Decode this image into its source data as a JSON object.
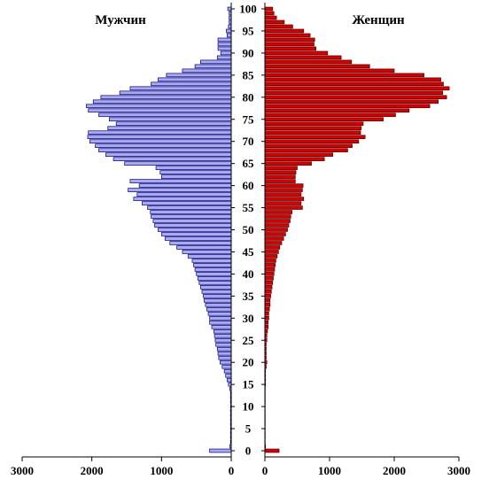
{
  "chart_data": [
    {
      "type": "bar",
      "orientation": "horizontal",
      "title": "Мужчин",
      "xlim": [
        3000,
        0
      ],
      "x_ticks": [
        "3000",
        "2000",
        "1000",
        "0"
      ],
      "color": "#aaaaf0",
      "edge_color": "#00007a",
      "ages": [
        0,
        1,
        2,
        3,
        4,
        5,
        6,
        7,
        8,
        9,
        10,
        11,
        12,
        13,
        14,
        15,
        16,
        17,
        18,
        19,
        20,
        21,
        22,
        23,
        24,
        25,
        26,
        27,
        28,
        29,
        30,
        31,
        32,
        33,
        34,
        35,
        36,
        37,
        38,
        39,
        40,
        41,
        42,
        43,
        44,
        45,
        46,
        47,
        48,
        49,
        50,
        51,
        52,
        53,
        54,
        55,
        56,
        57,
        58,
        59,
        60,
        61,
        62,
        63,
        64,
        65,
        66,
        67,
        68,
        69,
        70,
        71,
        72,
        73,
        74,
        75,
        76,
        77,
        78,
        79,
        80,
        81,
        82,
        83,
        84,
        85,
        86,
        87,
        88,
        89,
        90,
        91,
        92,
        93,
        94,
        95,
        96,
        97,
        98,
        99,
        100
      ],
      "values": [
        310,
        20,
        10,
        10,
        10,
        10,
        10,
        10,
        10,
        10,
        10,
        10,
        10,
        10,
        20,
        40,
        60,
        80,
        100,
        130,
        160,
        180,
        190,
        200,
        220,
        230,
        240,
        250,
        280,
        310,
        310,
        330,
        350,
        370,
        390,
        400,
        420,
        440,
        460,
        480,
        500,
        520,
        540,
        560,
        620,
        700,
        780,
        880,
        950,
        1000,
        1050,
        1100,
        1120,
        1150,
        1160,
        1200,
        1280,
        1400,
        1350,
        1480,
        1320,
        1450,
        1000,
        1020,
        1080,
        1530,
        1690,
        1800,
        1900,
        1950,
        2030,
        2060,
        2050,
        1770,
        1650,
        1750,
        1900,
        2050,
        2080,
        1980,
        1870,
        1600,
        1450,
        1150,
        1050,
        930,
        700,
        520,
        440,
        200,
        150,
        190,
        190,
        190,
        60,
        70,
        40,
        30,
        30,
        30,
        50
      ]
    },
    {
      "type": "bar",
      "orientation": "horizontal",
      "title": "Женщин",
      "xlim": [
        0,
        3000
      ],
      "x_ticks": [
        "0",
        "1000",
        "2000",
        "3000"
      ],
      "color": "#d40000",
      "edge_color": "#550000",
      "ages": [
        0,
        1,
        2,
        3,
        4,
        5,
        6,
        7,
        8,
        9,
        10,
        11,
        12,
        13,
        14,
        15,
        16,
        17,
        18,
        19,
        20,
        21,
        22,
        23,
        24,
        25,
        26,
        27,
        28,
        29,
        30,
        31,
        32,
        33,
        34,
        35,
        36,
        37,
        38,
        39,
        40,
        41,
        42,
        43,
        44,
        45,
        46,
        47,
        48,
        49,
        50,
        51,
        52,
        53,
        54,
        55,
        56,
        57,
        58,
        59,
        60,
        61,
        62,
        63,
        64,
        65,
        66,
        67,
        68,
        69,
        70,
        71,
        72,
        73,
        74,
        75,
        76,
        77,
        78,
        79,
        80,
        81,
        82,
        83,
        84,
        85,
        86,
        87,
        88,
        89,
        90,
        91,
        92,
        93,
        94,
        95,
        96,
        97,
        98,
        99,
        100
      ],
      "values": [
        220,
        10,
        5,
        5,
        5,
        5,
        5,
        5,
        5,
        5,
        5,
        5,
        5,
        5,
        5,
        10,
        10,
        10,
        10,
        20,
        30,
        20,
        20,
        20,
        20,
        30,
        30,
        40,
        50,
        50,
        60,
        60,
        70,
        80,
        80,
        90,
        100,
        110,
        120,
        130,
        140,
        150,
        160,
        170,
        190,
        210,
        230,
        260,
        290,
        320,
        350,
        370,
        390,
        400,
        420,
        580,
        560,
        600,
        560,
        580,
        590,
        470,
        470,
        480,
        500,
        720,
        920,
        1050,
        1280,
        1350,
        1450,
        1550,
        1480,
        1490,
        1520,
        1830,
        2020,
        2230,
        2550,
        2680,
        2810,
        2750,
        2850,
        2760,
        2720,
        2460,
        2000,
        1620,
        1340,
        1180,
        970,
        790,
        760,
        770,
        700,
        600,
        430,
        300,
        180,
        140,
        120,
        270
      ]
    }
  ],
  "y_axis": {
    "ticks": [
      "0",
      "5",
      "10",
      "15",
      "20",
      "25",
      "30",
      "35",
      "40",
      "45",
      "50",
      "55",
      "60",
      "65",
      "70",
      "75",
      "80",
      "85",
      "90",
      "95",
      "100"
    ]
  }
}
